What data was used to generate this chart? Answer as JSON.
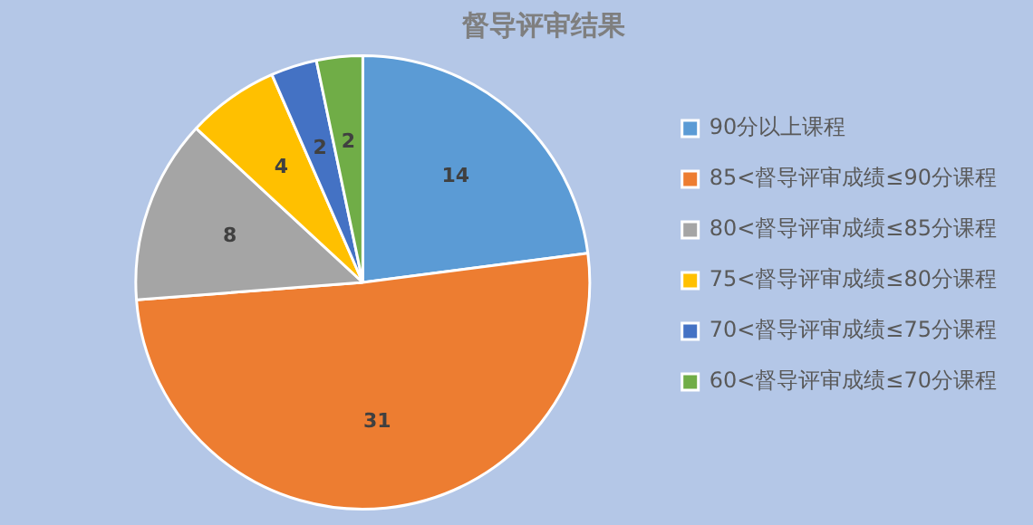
{
  "chart_data": {
    "type": "pie",
    "title": "督导评审结果",
    "categories": [
      "90分以上课程",
      "85<督导评审成绩≤90分课程",
      "80<督导评审成绩≤85分课程",
      "75<督导评审成绩≤80分课程",
      "70<督导评审成绩≤75分课程",
      "60<督导评审成绩≤70分课程"
    ],
    "values": [
      14,
      31,
      8,
      4,
      2,
      2
    ],
    "colors": [
      "#5b9bd5",
      "#ed7d31",
      "#a5a5a5",
      "#ffc000",
      "#4472c4",
      "#70ad47"
    ],
    "data_labels": true,
    "legend": "right"
  }
}
